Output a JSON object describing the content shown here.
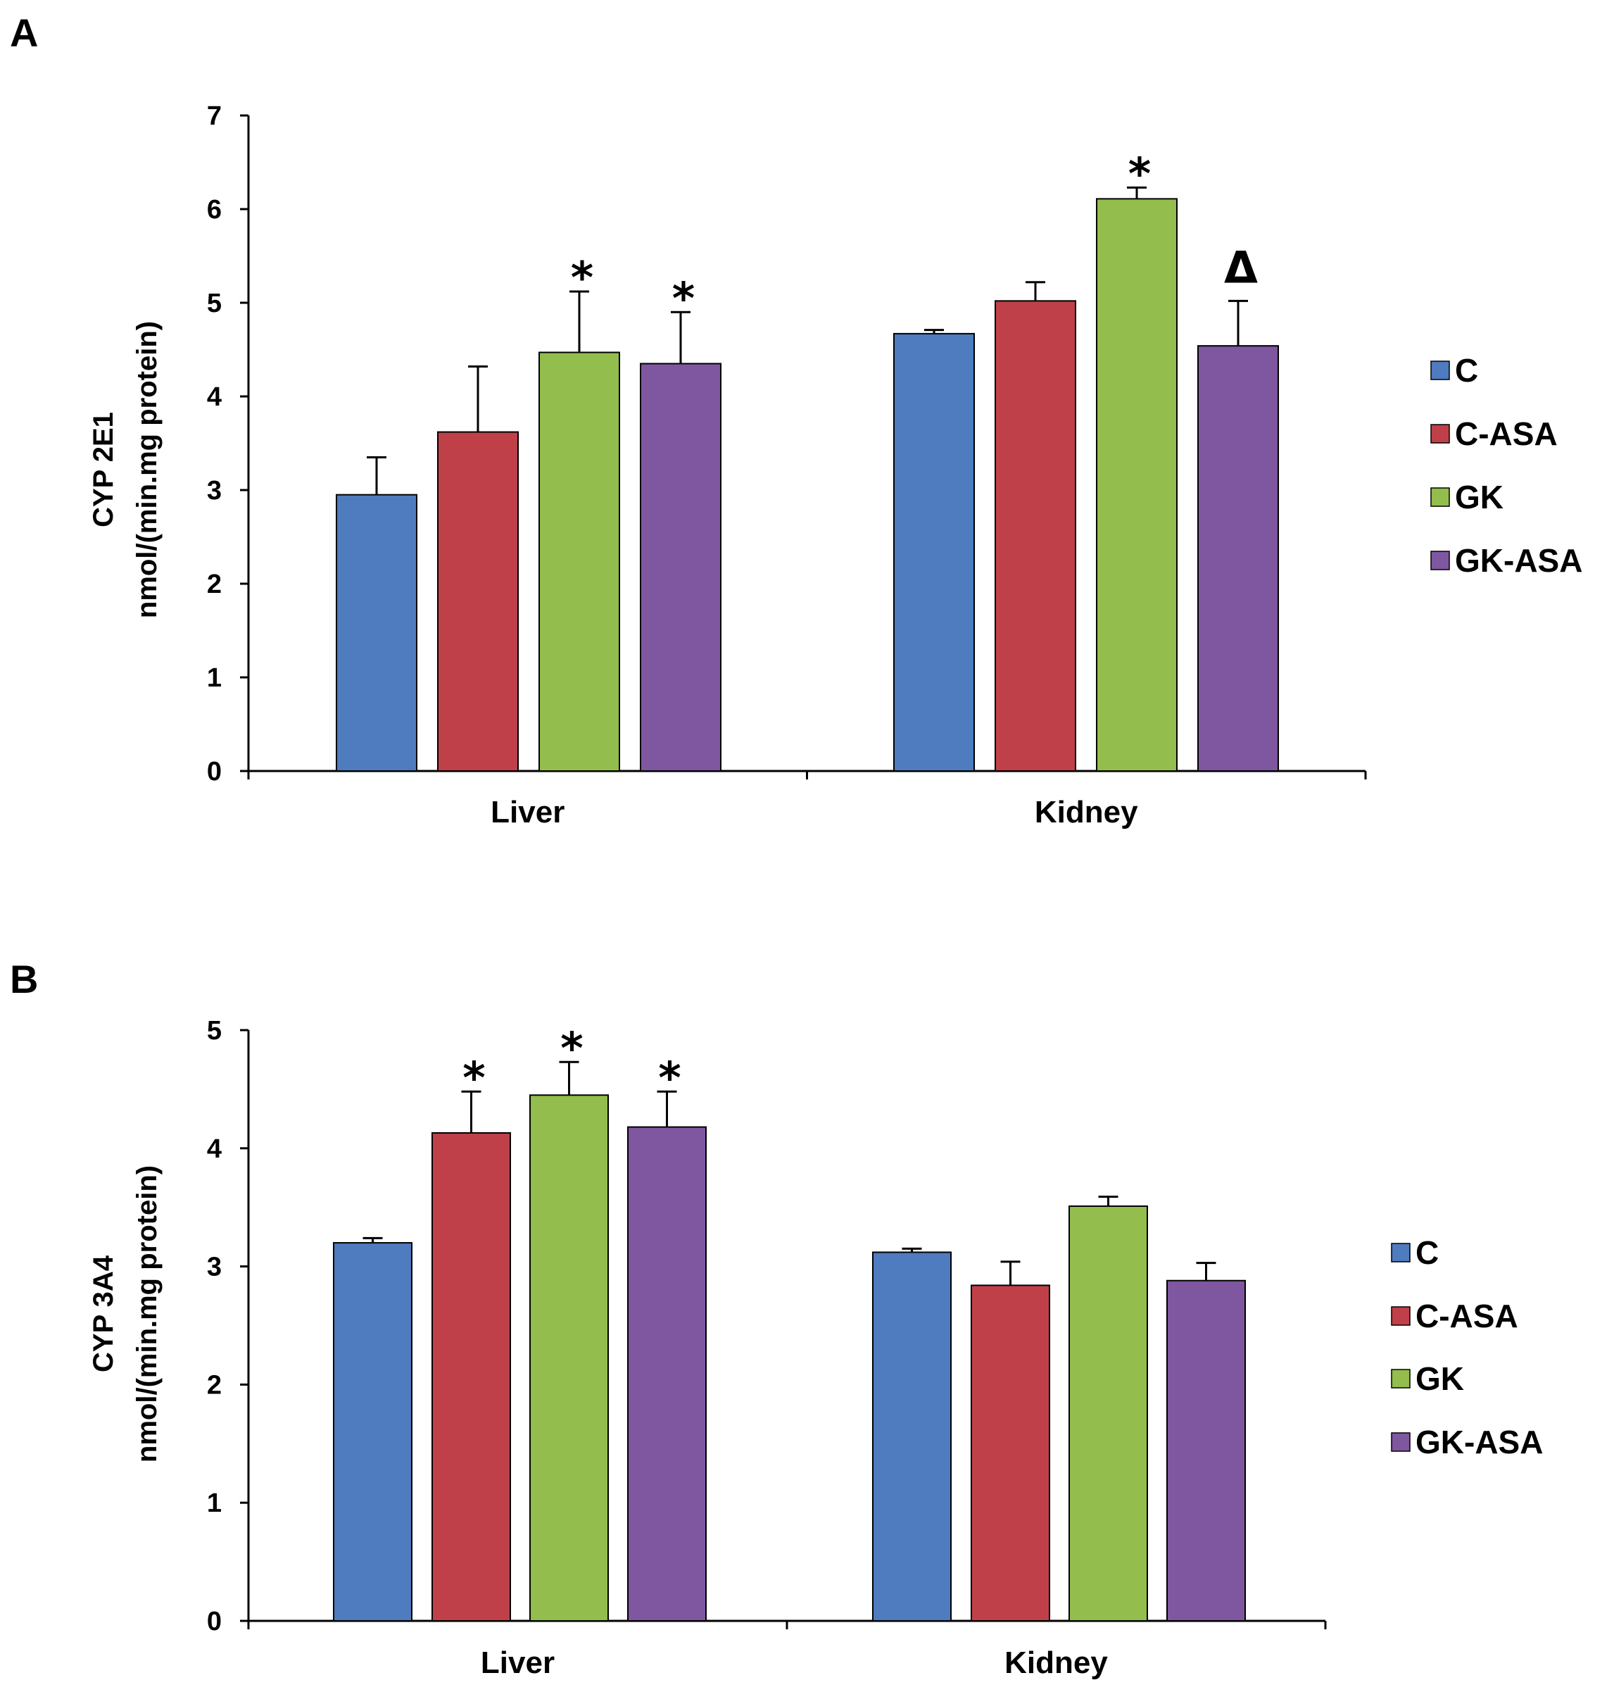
{
  "chart_data": [
    {
      "type": "bar",
      "panel_label": "A",
      "title": "",
      "xlabel": "",
      "ylabel_lines": [
        "CYP 2E1",
        "nmol/(min.mg protein)"
      ],
      "ylim": [
        0,
        7
      ],
      "yticks": [
        "0",
        "1",
        "2",
        "3",
        "4",
        "5",
        "6",
        "7"
      ],
      "categories": [
        "Liver",
        "Kidney"
      ],
      "series": [
        {
          "name": "C",
          "color": "#4f7bbf",
          "values": [
            2.95,
            4.67
          ],
          "errors": [
            0.4,
            0.04
          ],
          "annotations": [
            "",
            ""
          ]
        },
        {
          "name": "C-ASA",
          "color": "#c0404a",
          "values": [
            3.62,
            5.02
          ],
          "errors": [
            0.7,
            0.2
          ],
          "annotations": [
            "",
            ""
          ]
        },
        {
          "name": "GK",
          "color": "#93bd4c",
          "values": [
            4.47,
            6.11
          ],
          "errors": [
            0.65,
            0.12
          ],
          "annotations": [
            "*",
            "*"
          ]
        },
        {
          "name": "GK-ASA",
          "color": "#7e57a0",
          "values": [
            4.35,
            4.54
          ],
          "errors": [
            0.55,
            0.48
          ],
          "annotations": [
            "*",
            "Δ"
          ]
        }
      ],
      "legend_position": "right"
    },
    {
      "type": "bar",
      "panel_label": "B",
      "title": "",
      "xlabel": "",
      "ylabel_lines": [
        "CYP 3A4",
        "nmol/(min.mg protein)"
      ],
      "ylim": [
        0,
        5
      ],
      "yticks": [
        "0",
        "1",
        "2",
        "3",
        "4",
        "5"
      ],
      "categories": [
        "Liver",
        "Kidney"
      ],
      "series": [
        {
          "name": "C",
          "color": "#4f7bbf",
          "values": [
            3.2,
            3.12
          ],
          "errors": [
            0.04,
            0.03
          ],
          "annotations": [
            "",
            ""
          ]
        },
        {
          "name": "C-ASA",
          "color": "#c0404a",
          "values": [
            4.13,
            2.84
          ],
          "errors": [
            0.35,
            0.2
          ],
          "annotations": [
            "*",
            ""
          ]
        },
        {
          "name": "GK",
          "color": "#93bd4c",
          "values": [
            4.45,
            3.51
          ],
          "errors": [
            0.28,
            0.08
          ],
          "annotations": [
            "*",
            ""
          ]
        },
        {
          "name": "GK-ASA",
          "color": "#7e57a0",
          "values": [
            4.18,
            2.88
          ],
          "errors": [
            0.3,
            0.15
          ],
          "annotations": [
            "*",
            ""
          ]
        }
      ],
      "legend_position": "right"
    }
  ]
}
